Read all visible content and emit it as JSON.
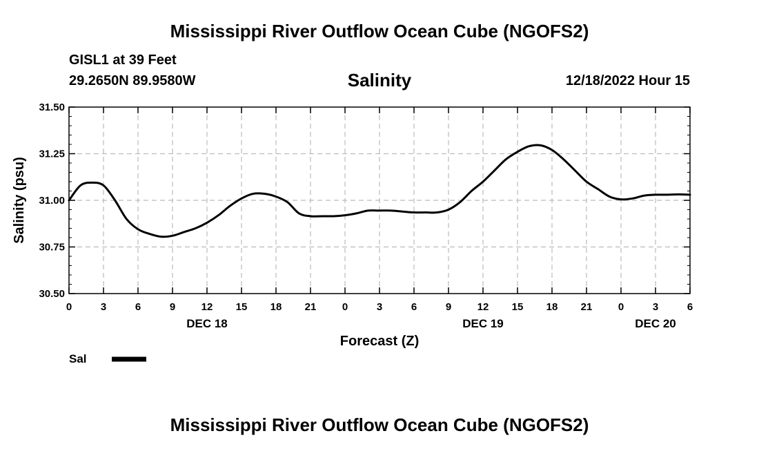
{
  "page": {
    "title": "Mississippi River Outflow Ocean Cube (NGOFS2)",
    "footer_title": "Mississippi River Outflow Ocean Cube (NGOFS2)"
  },
  "header": {
    "station": "GISL1 at 39 Feet",
    "coords": "29.2650N  89.9580W",
    "variable": "Salinity",
    "datetime": "12/18/2022 Hour 15"
  },
  "legend": {
    "label": "Sal"
  },
  "colors": {
    "line": "#000000",
    "grid": "#bbbbbb"
  },
  "chart_data": {
    "type": "line",
    "title": "Salinity",
    "xlabel": "Forecast (Z)",
    "ylabel": "Salinity (psu)",
    "xlim": [
      0,
      54
    ],
    "ylim": [
      30.5,
      31.5
    ],
    "x_ticks": [
      {
        "x": 0,
        "label": "0"
      },
      {
        "x": 3,
        "label": "3"
      },
      {
        "x": 6,
        "label": "6"
      },
      {
        "x": 9,
        "label": "9"
      },
      {
        "x": 12,
        "label": "12"
      },
      {
        "x": 15,
        "label": "15"
      },
      {
        "x": 18,
        "label": "18"
      },
      {
        "x": 21,
        "label": "21"
      },
      {
        "x": 24,
        "label": "0"
      },
      {
        "x": 27,
        "label": "3"
      },
      {
        "x": 30,
        "label": "6"
      },
      {
        "x": 33,
        "label": "9"
      },
      {
        "x": 36,
        "label": "12"
      },
      {
        "x": 39,
        "label": "15"
      },
      {
        "x": 42,
        "label": "18"
      },
      {
        "x": 45,
        "label": "21"
      },
      {
        "x": 48,
        "label": "0"
      },
      {
        "x": 51,
        "label": "3"
      },
      {
        "x": 54,
        "label": "6"
      }
    ],
    "y_ticks": [
      {
        "y": 30.5,
        "label": "30.50"
      },
      {
        "y": 30.75,
        "label": "30.75"
      },
      {
        "y": 31.0,
        "label": "31.00"
      },
      {
        "y": 31.25,
        "label": "31.25"
      },
      {
        "y": 31.5,
        "label": "31.50"
      }
    ],
    "date_labels": [
      {
        "x": 12,
        "label": "DEC 18"
      },
      {
        "x": 36,
        "label": "DEC 19"
      },
      {
        "x": 51,
        "label": "DEC 20"
      }
    ],
    "series": [
      {
        "name": "Sal",
        "x": [
          0,
          1,
          2,
          3,
          4,
          5,
          6,
          7,
          8,
          9,
          10,
          11,
          12,
          13,
          14,
          15,
          16,
          17,
          18,
          19,
          20,
          21,
          22,
          23,
          24,
          25,
          26,
          27,
          28,
          29,
          30,
          31,
          32,
          33,
          34,
          35,
          36,
          37,
          38,
          39,
          40,
          41,
          42,
          43,
          44,
          45,
          46,
          47,
          48,
          49,
          50,
          51,
          52,
          53,
          54
        ],
        "values": [
          31.0,
          31.08,
          31.095,
          31.08,
          31.0,
          30.9,
          30.845,
          30.82,
          30.805,
          30.81,
          30.83,
          30.85,
          30.88,
          30.92,
          30.97,
          31.01,
          31.035,
          31.035,
          31.02,
          30.99,
          30.93,
          30.915,
          30.915,
          30.915,
          30.92,
          30.93,
          30.945,
          30.945,
          30.945,
          30.94,
          30.935,
          30.935,
          30.935,
          30.95,
          30.99,
          31.05,
          31.1,
          31.16,
          31.22,
          31.26,
          31.29,
          31.295,
          31.27,
          31.22,
          31.16,
          31.1,
          31.06,
          31.02,
          31.005,
          31.01,
          31.025,
          31.03,
          31.03,
          31.032,
          31.03
        ]
      }
    ]
  }
}
